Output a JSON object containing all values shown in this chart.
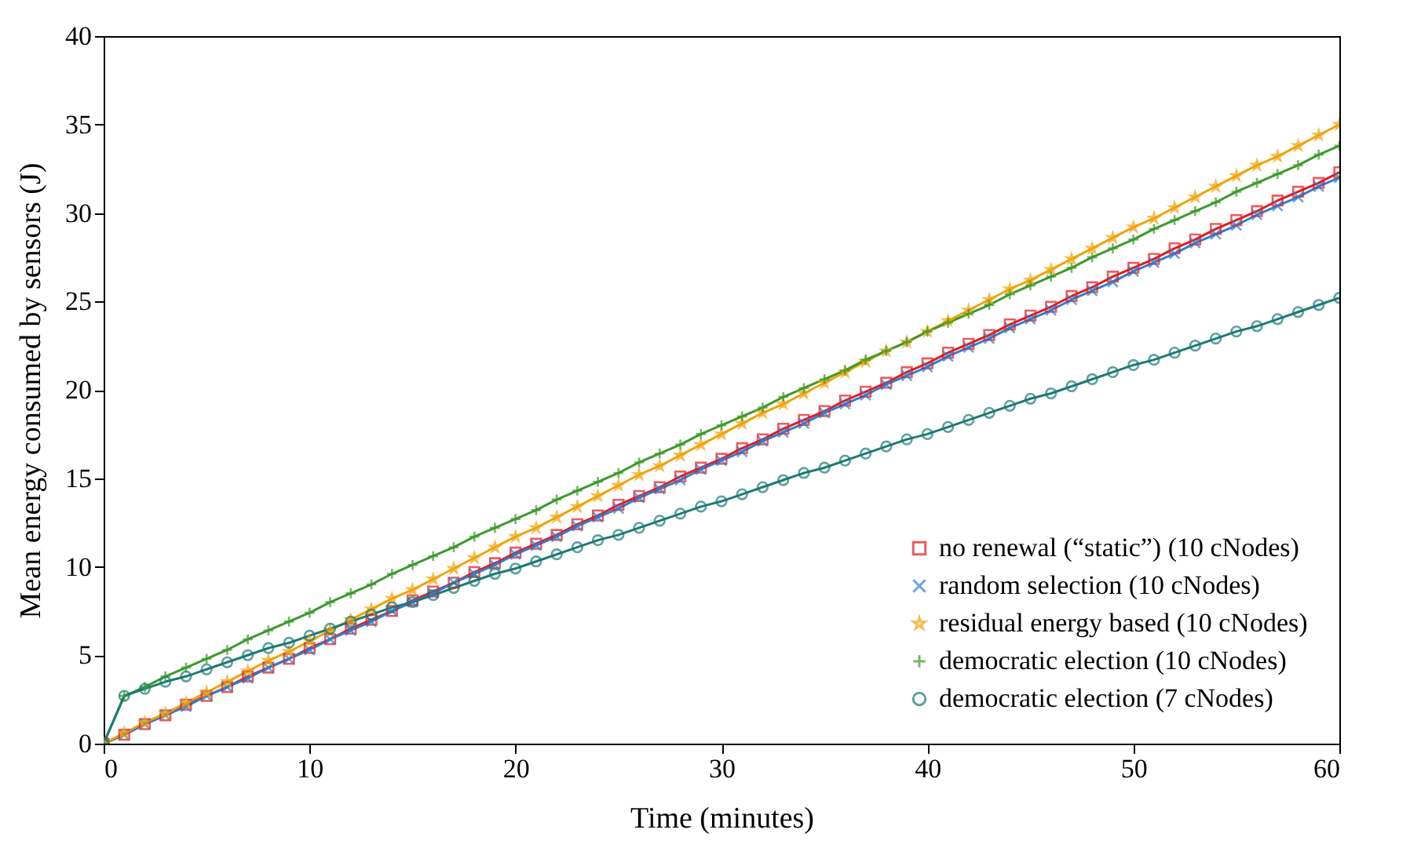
{
  "chart_data": {
    "type": "line",
    "xlabel": "Time (minutes)",
    "ylabel": "Mean energy consumed by sensors (J)",
    "x": [
      0,
      1,
      2,
      3,
      4,
      5,
      6,
      7,
      8,
      9,
      10,
      11,
      12,
      13,
      14,
      15,
      16,
      17,
      18,
      19,
      20,
      21,
      22,
      23,
      24,
      25,
      26,
      27,
      28,
      29,
      30,
      31,
      32,
      33,
      34,
      35,
      36,
      37,
      38,
      39,
      40,
      41,
      42,
      43,
      44,
      45,
      46,
      47,
      48,
      49,
      50,
      51,
      52,
      53,
      54,
      55,
      56,
      57,
      58,
      59,
      60
    ],
    "series": [
      {
        "name": "no renewal (“static”) (10 cNodes)",
        "color": "#e41a1c",
        "marker": "square",
        "values": [
          0,
          0.5,
          1.1,
          1.6,
          2.2,
          2.7,
          3.2,
          3.8,
          4.3,
          4.8,
          5.4,
          5.9,
          6.5,
          7.0,
          7.5,
          8.1,
          8.6,
          9.1,
          9.7,
          10.2,
          10.8,
          11.3,
          11.8,
          12.4,
          12.9,
          13.5,
          14.0,
          14.5,
          15.1,
          15.6,
          16.1,
          16.7,
          17.2,
          17.8,
          18.3,
          18.8,
          19.4,
          19.9,
          20.4,
          21.0,
          21.5,
          22.1,
          22.6,
          23.1,
          23.7,
          24.2,
          24.7,
          25.3,
          25.8,
          26.4,
          26.9,
          27.4,
          28.0,
          28.5,
          29.1,
          29.6,
          30.1,
          30.7,
          31.2,
          31.7,
          32.3
        ]
      },
      {
        "name": "random selection (10 cNodes)",
        "color": "#2f7fd0",
        "marker": "cross",
        "values": [
          0,
          0.5,
          1.1,
          1.6,
          2.1,
          2.7,
          3.2,
          3.7,
          4.3,
          4.8,
          5.3,
          5.9,
          6.4,
          6.9,
          7.5,
          8.0,
          8.5,
          9.1,
          9.6,
          10.1,
          10.7,
          11.2,
          11.7,
          12.3,
          12.8,
          13.3,
          13.9,
          14.4,
          14.9,
          15.5,
          16.0,
          16.5,
          17.1,
          17.6,
          18.1,
          18.7,
          19.2,
          19.7,
          20.3,
          20.8,
          21.3,
          21.9,
          22.4,
          22.9,
          23.5,
          24.0,
          24.5,
          25.1,
          25.6,
          26.1,
          26.7,
          27.2,
          27.7,
          28.3,
          28.8,
          29.3,
          29.9,
          30.4,
          30.9,
          31.5,
          32.0
        ]
      },
      {
        "name": "residual energy based (10 cNodes)",
        "color": "#f0a30a",
        "marker": "star",
        "values": [
          0,
          0.6,
          1.2,
          1.7,
          2.3,
          2.9,
          3.5,
          4.1,
          4.7,
          5.2,
          5.8,
          6.4,
          7.0,
          7.6,
          8.2,
          8.7,
          9.3,
          9.9,
          10.5,
          11.1,
          11.7,
          12.2,
          12.8,
          13.4,
          14.0,
          14.6,
          15.2,
          15.7,
          16.3,
          16.9,
          17.5,
          18.1,
          18.7,
          19.2,
          19.8,
          20.4,
          21.0,
          21.6,
          22.2,
          22.7,
          23.3,
          23.9,
          24.5,
          25.1,
          25.7,
          26.2,
          26.8,
          27.4,
          28.0,
          28.6,
          29.2,
          29.7,
          30.3,
          30.9,
          31.5,
          32.1,
          32.7,
          33.2,
          33.8,
          34.4,
          35.0
        ]
      },
      {
        "name": "democratic election (10 cNodes)",
        "color": "#3a9a2a",
        "marker": "plus",
        "values": [
          0,
          2.7,
          3.2,
          3.8,
          4.3,
          4.8,
          5.3,
          5.9,
          6.4,
          6.9,
          7.4,
          8.0,
          8.5,
          9.0,
          9.6,
          10.1,
          10.6,
          11.1,
          11.7,
          12.2,
          12.7,
          13.2,
          13.8,
          14.3,
          14.8,
          15.3,
          15.9,
          16.4,
          16.9,
          17.5,
          18.0,
          18.5,
          19.0,
          19.6,
          20.1,
          20.6,
          21.1,
          21.7,
          22.2,
          22.7,
          23.3,
          23.8,
          24.3,
          24.8,
          25.4,
          25.9,
          26.4,
          26.9,
          27.5,
          28.0,
          28.5,
          29.1,
          29.6,
          30.1,
          30.6,
          31.2,
          31.7,
          32.2,
          32.7,
          33.3,
          33.8
        ]
      },
      {
        "name": "democratic election (7 cNodes)",
        "color": "#1a7a75",
        "marker": "circle",
        "values": [
          0,
          2.7,
          3.1,
          3.5,
          3.8,
          4.2,
          4.6,
          5.0,
          5.4,
          5.7,
          6.1,
          6.5,
          6.9,
          7.3,
          7.7,
          8.0,
          8.4,
          8.8,
          9.2,
          9.6,
          9.9,
          10.3,
          10.7,
          11.1,
          11.5,
          11.8,
          12.2,
          12.6,
          13.0,
          13.4,
          13.7,
          14.1,
          14.5,
          14.9,
          15.3,
          15.6,
          16.0,
          16.4,
          16.8,
          17.2,
          17.5,
          17.9,
          18.3,
          18.7,
          19.1,
          19.5,
          19.8,
          20.2,
          20.6,
          21.0,
          21.4,
          21.7,
          22.1,
          22.5,
          22.9,
          23.3,
          23.6,
          24.0,
          24.4,
          24.8,
          25.2
        ]
      }
    ],
    "xlim": [
      0,
      60
    ],
    "xticks": [
      0,
      10,
      20,
      30,
      40,
      50,
      60
    ],
    "ylim": [
      0,
      40
    ],
    "yticks": [
      0,
      5,
      10,
      15,
      20,
      25,
      30,
      35,
      40
    ],
    "grid": false,
    "legend": "bottom right"
  }
}
